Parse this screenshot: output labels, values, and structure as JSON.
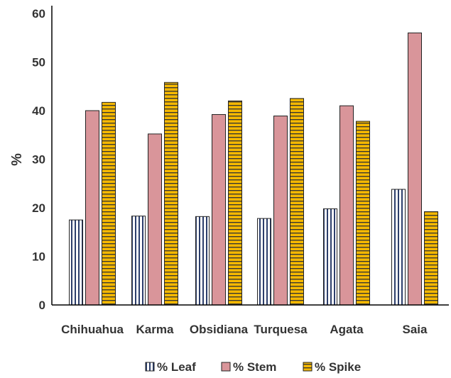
{
  "chart_data": {
    "type": "bar",
    "title": "",
    "xlabel": "",
    "ylabel": "%",
    "ylim": [
      0,
      60
    ],
    "yticks": [
      0,
      10,
      20,
      30,
      40,
      50,
      60
    ],
    "grid": false,
    "legend_position": "bottom",
    "categories": [
      "Chihuahua",
      "Karma",
      "Obsidiana",
      "Turquesa",
      "Agata",
      "Saia"
    ],
    "series": [
      {
        "name": "% Leaf",
        "values": [
          17.5,
          18.3,
          18.2,
          17.8,
          19.8,
          23.8
        ],
        "color": "#2c3e6b",
        "pattern": "vertical-stripes"
      },
      {
        "name": "% Stem",
        "values": [
          40.0,
          35.2,
          39.2,
          38.9,
          41.0,
          56.0
        ],
        "color": "#d9959a",
        "pattern": "solid"
      },
      {
        "name": "% Spike",
        "values": [
          41.7,
          45.8,
          42.0,
          42.5,
          37.8,
          19.2
        ],
        "color": "#f5b800",
        "pattern": "horizontal-stripes"
      }
    ]
  }
}
